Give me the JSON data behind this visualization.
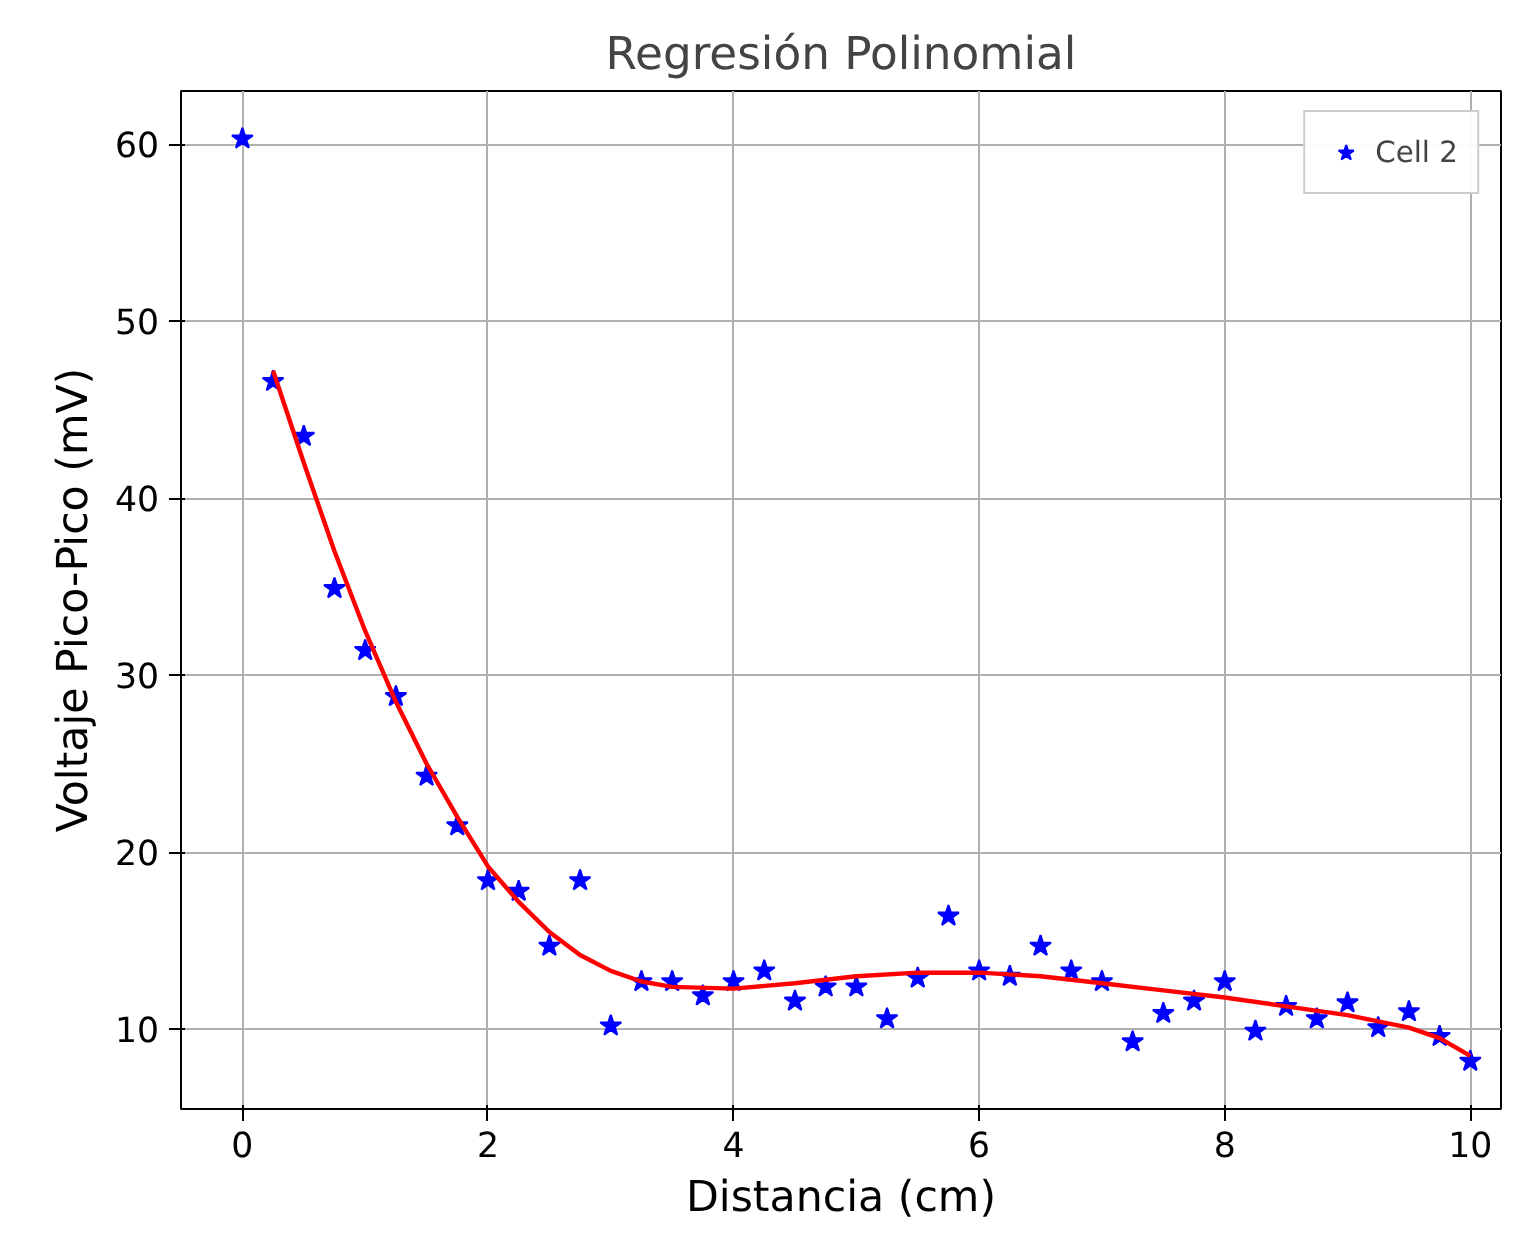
{
  "chart_data": {
    "type": "scatter",
    "title": "Regresión Polinomial",
    "xlabel": "Distancia (cm)",
    "ylabel": "Voltaje Pico-Pico (mV)",
    "xlim": [
      -0.5,
      10.25
    ],
    "ylim": [
      5.5,
      63
    ],
    "xticks": [
      0,
      2,
      4,
      6,
      8,
      10
    ],
    "yticks": [
      10,
      20,
      30,
      40,
      50,
      60
    ],
    "grid": true,
    "legend": "top right",
    "series": [
      {
        "name": "Cell 2",
        "marker": "star",
        "color": "#0000ff",
        "x": [
          0,
          0.25,
          0.5,
          0.75,
          1.0,
          1.25,
          1.5,
          1.75,
          2.0,
          2.25,
          2.5,
          2.75,
          3.0,
          3.25,
          3.5,
          3.75,
          4.0,
          4.25,
          4.5,
          4.75,
          5.0,
          5.25,
          5.5,
          5.75,
          6.0,
          6.25,
          6.5,
          6.75,
          7.0,
          7.25,
          7.5,
          7.75,
          8.0,
          8.25,
          8.5,
          8.75,
          9.0,
          9.25,
          9.5,
          9.75,
          10
        ],
        "values": [
          60.3,
          46.6,
          43.5,
          34.9,
          31.4,
          28.8,
          24.3,
          21.5,
          18.4,
          17.8,
          14.7,
          18.4,
          10.2,
          12.7,
          12.7,
          11.9,
          12.7,
          13.3,
          11.6,
          12.4,
          12.4,
          10.6,
          12.9,
          16.4,
          13.3,
          13.0,
          14.7,
          13.3,
          12.7,
          9.3,
          10.9,
          11.6,
          12.7,
          9.9,
          11.3,
          10.6,
          11.5,
          10.1,
          11.0,
          9.6,
          8.2
        ]
      },
      {
        "type": "line",
        "line_style": "solid",
        "color": "#ff0000",
        "x": [
          0.25,
          0.5,
          0.75,
          1.0,
          1.25,
          1.5,
          1.75,
          2.0,
          2.25,
          2.5,
          2.75,
          3.0,
          3.25,
          3.5,
          4.0,
          4.5,
          5.0,
          5.5,
          6.0,
          6.5,
          7.0,
          7.5,
          8.0,
          8.5,
          9.0,
          9.5,
          9.75,
          10
        ],
        "values": [
          47.2,
          42,
          37,
          32.5,
          28.5,
          25,
          22,
          19.2,
          17.2,
          15.5,
          14.2,
          13.3,
          12.7,
          12.4,
          12.3,
          12.6,
          13,
          13.2,
          13.2,
          13,
          12.6,
          12.2,
          11.8,
          11.3,
          10.8,
          10.1,
          9.5,
          8.5
        ]
      }
    ]
  }
}
